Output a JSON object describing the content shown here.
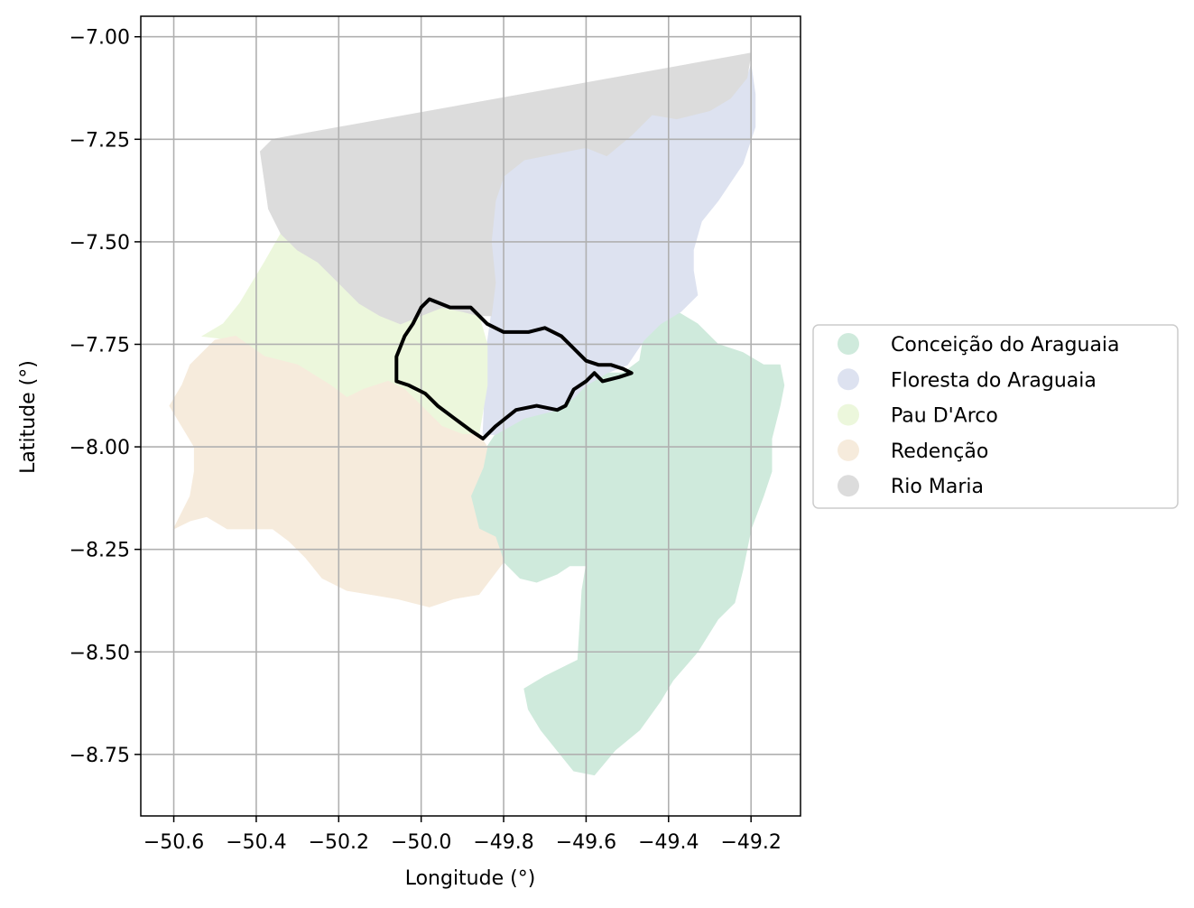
{
  "chart_data": {
    "type": "map",
    "title": "",
    "xlabel": "Longitude (°)",
    "ylabel": "Latitude (°)",
    "xlim": [
      -50.68,
      -49.08
    ],
    "ylim": [
      -8.9,
      -6.95
    ],
    "xticks": [
      -50.6,
      -50.4,
      -50.2,
      -50.0,
      -49.8,
      -49.6,
      -49.4,
      -49.2
    ],
    "xtick_labels": [
      "−50.6",
      "−50.4",
      "−50.2",
      "−50.0",
      "−49.8",
      "−49.6",
      "−49.4",
      "−49.2"
    ],
    "yticks": [
      -7.0,
      -7.25,
      -7.5,
      -7.75,
      -8.0,
      -8.25,
      -8.5,
      -8.75
    ],
    "ytick_labels": [
      "−7.00",
      "−7.25",
      "−7.50",
      "−7.75",
      "−8.00",
      "−8.25",
      "−8.50",
      "−8.75"
    ],
    "grid": true,
    "legend_position": "center-right outside",
    "regions": [
      {
        "name": "Conceição do Araguaia",
        "color": "#cfeadc",
        "coords": [
          [
            -49.6,
            -7.56
          ],
          [
            -49.55,
            -7.62
          ],
          [
            -49.5,
            -7.67
          ],
          [
            -49.44,
            -7.7
          ],
          [
            -49.38,
            -7.67
          ],
          [
            -49.33,
            -7.7
          ],
          [
            -49.28,
            -7.75
          ],
          [
            -49.22,
            -7.77
          ],
          [
            -49.17,
            -7.8
          ],
          [
            -49.13,
            -7.8
          ],
          [
            -49.12,
            -7.85
          ],
          [
            -49.13,
            -7.9
          ],
          [
            -49.15,
            -7.98
          ],
          [
            -49.15,
            -8.06
          ],
          [
            -49.17,
            -8.12
          ],
          [
            -49.2,
            -8.2
          ],
          [
            -49.22,
            -8.3
          ],
          [
            -49.24,
            -8.38
          ],
          [
            -49.28,
            -8.42
          ],
          [
            -49.33,
            -8.5
          ],
          [
            -49.39,
            -8.57
          ],
          [
            -49.42,
            -8.62
          ],
          [
            -49.47,
            -8.69
          ],
          [
            -49.53,
            -8.74
          ],
          [
            -49.58,
            -8.8
          ],
          [
            -49.63,
            -8.79
          ],
          [
            -49.67,
            -8.74
          ],
          [
            -49.71,
            -8.69
          ],
          [
            -49.74,
            -8.64
          ],
          [
            -49.75,
            -8.59
          ],
          [
            -49.7,
            -8.56
          ],
          [
            -49.62,
            -8.52
          ],
          [
            -49.61,
            -8.35
          ],
          [
            -49.6,
            -8.29
          ],
          [
            -49.64,
            -8.29
          ],
          [
            -49.67,
            -8.31
          ],
          [
            -49.72,
            -8.33
          ],
          [
            -49.76,
            -8.32
          ],
          [
            -49.8,
            -8.28
          ],
          [
            -49.83,
            -8.25
          ],
          [
            -49.86,
            -8.2
          ],
          [
            -49.88,
            -8.12
          ],
          [
            -49.86,
            -8.05
          ],
          [
            -49.84,
            -8.0
          ],
          [
            -49.82,
            -7.97
          ],
          [
            -49.75,
            -7.93
          ],
          [
            -49.67,
            -7.91
          ],
          [
            -49.63,
            -7.88
          ],
          [
            -49.6,
            -7.84
          ],
          [
            -49.55,
            -7.82
          ],
          [
            -49.51,
            -7.82
          ],
          [
            -49.47,
            -7.79
          ],
          [
            -49.46,
            -7.73
          ],
          [
            -49.52,
            -7.68
          ],
          [
            -49.56,
            -7.62
          ]
        ]
      },
      {
        "name": "Floresta do Araguaia",
        "color": "#dde2f0",
        "coords": [
          [
            -49.2,
            -7.07
          ],
          [
            -49.19,
            -7.14
          ],
          [
            -49.19,
            -7.22
          ],
          [
            -49.22,
            -7.31
          ],
          [
            -49.28,
            -7.4
          ],
          [
            -49.32,
            -7.45
          ],
          [
            -49.34,
            -7.52
          ],
          [
            -49.34,
            -7.57
          ],
          [
            -49.33,
            -7.63
          ],
          [
            -49.37,
            -7.67
          ],
          [
            -49.42,
            -7.7
          ],
          [
            -49.46,
            -7.74
          ],
          [
            -49.5,
            -7.8
          ],
          [
            -49.55,
            -7.82
          ],
          [
            -49.6,
            -7.85
          ],
          [
            -49.63,
            -7.88
          ],
          [
            -49.67,
            -7.91
          ],
          [
            -49.75,
            -7.93
          ],
          [
            -49.82,
            -7.97
          ],
          [
            -49.85,
            -7.97
          ],
          [
            -49.84,
            -7.75
          ],
          [
            -49.83,
            -7.68
          ],
          [
            -49.82,
            -7.6
          ],
          [
            -49.83,
            -7.5
          ],
          [
            -49.82,
            -7.4
          ],
          [
            -49.8,
            -7.34
          ],
          [
            -49.75,
            -7.3
          ],
          [
            -49.7,
            -7.29
          ],
          [
            -49.65,
            -7.28
          ],
          [
            -49.6,
            -7.27
          ],
          [
            -49.55,
            -7.29
          ],
          [
            -49.49,
            -7.24
          ],
          [
            -49.44,
            -7.19
          ],
          [
            -49.38,
            -7.2
          ],
          [
            -49.3,
            -7.18
          ],
          [
            -49.25,
            -7.15
          ],
          [
            -49.21,
            -7.1
          ]
        ]
      },
      {
        "name": "Pau D'Arco",
        "color": "#ecf7dc",
        "coords": [
          [
            -50.34,
            -7.48
          ],
          [
            -50.38,
            -7.55
          ],
          [
            -50.41,
            -7.6
          ],
          [
            -50.44,
            -7.65
          ],
          [
            -50.48,
            -7.7
          ],
          [
            -50.53,
            -7.73
          ],
          [
            -50.45,
            -7.74
          ],
          [
            -50.38,
            -7.78
          ],
          [
            -50.3,
            -7.8
          ],
          [
            -50.22,
            -7.85
          ],
          [
            -50.18,
            -7.88
          ],
          [
            -50.14,
            -7.86
          ],
          [
            -50.08,
            -7.84
          ],
          [
            -50.04,
            -7.86
          ],
          [
            -50.0,
            -7.9
          ],
          [
            -49.95,
            -7.95
          ],
          [
            -49.9,
            -7.97
          ],
          [
            -49.86,
            -7.97
          ],
          [
            -49.84,
            -7.85
          ],
          [
            -49.84,
            -7.75
          ],
          [
            -49.86,
            -7.68
          ],
          [
            -49.9,
            -7.67
          ],
          [
            -49.95,
            -7.66
          ],
          [
            -50.0,
            -7.68
          ],
          [
            -50.05,
            -7.7
          ],
          [
            -50.1,
            -7.68
          ],
          [
            -50.15,
            -7.65
          ],
          [
            -50.2,
            -7.6
          ],
          [
            -50.25,
            -7.55
          ],
          [
            -50.3,
            -7.52
          ]
        ]
      },
      {
        "name": "Redenção",
        "color": "#f6ebdc",
        "coords": [
          [
            -50.45,
            -7.73
          ],
          [
            -50.5,
            -7.74
          ],
          [
            -50.56,
            -7.8
          ],
          [
            -50.58,
            -7.85
          ],
          [
            -50.61,
            -7.9
          ],
          [
            -50.58,
            -7.95
          ],
          [
            -50.55,
            -8.0
          ],
          [
            -50.55,
            -8.06
          ],
          [
            -50.56,
            -8.12
          ],
          [
            -50.6,
            -8.2
          ],
          [
            -50.56,
            -8.18
          ],
          [
            -50.52,
            -8.17
          ],
          [
            -50.47,
            -8.2
          ],
          [
            -50.42,
            -8.2
          ],
          [
            -50.36,
            -8.2
          ],
          [
            -50.32,
            -8.23
          ],
          [
            -50.28,
            -8.27
          ],
          [
            -50.24,
            -8.32
          ],
          [
            -50.18,
            -8.35
          ],
          [
            -50.12,
            -8.36
          ],
          [
            -50.06,
            -8.37
          ],
          [
            -49.98,
            -8.39
          ],
          [
            -49.92,
            -8.37
          ],
          [
            -49.86,
            -8.36
          ],
          [
            -49.83,
            -8.32
          ],
          [
            -49.8,
            -8.28
          ],
          [
            -49.82,
            -8.22
          ],
          [
            -49.86,
            -8.2
          ],
          [
            -49.88,
            -8.12
          ],
          [
            -49.85,
            -8.05
          ],
          [
            -49.84,
            -8.0
          ],
          [
            -49.86,
            -7.97
          ],
          [
            -49.9,
            -7.97
          ],
          [
            -49.95,
            -7.95
          ],
          [
            -50.0,
            -7.9
          ],
          [
            -50.04,
            -7.86
          ],
          [
            -50.08,
            -7.84
          ],
          [
            -50.14,
            -7.86
          ],
          [
            -50.18,
            -7.88
          ],
          [
            -50.22,
            -7.85
          ],
          [
            -50.3,
            -7.8
          ],
          [
            -50.38,
            -7.78
          ]
        ]
      },
      {
        "name": "Rio Maria",
        "color": "#dcdcdc",
        "coords": [
          [
            -49.2,
            -7.04
          ],
          [
            -50.36,
            -7.25
          ],
          [
            -50.39,
            -7.28
          ],
          [
            -50.38,
            -7.35
          ],
          [
            -50.37,
            -7.42
          ],
          [
            -50.34,
            -7.48
          ],
          [
            -50.3,
            -7.52
          ],
          [
            -50.25,
            -7.55
          ],
          [
            -50.2,
            -7.6
          ],
          [
            -50.15,
            -7.65
          ],
          [
            -50.1,
            -7.68
          ],
          [
            -50.05,
            -7.7
          ],
          [
            -50.0,
            -7.68
          ],
          [
            -49.95,
            -7.66
          ],
          [
            -49.9,
            -7.67
          ],
          [
            -49.86,
            -7.68
          ],
          [
            -49.83,
            -7.68
          ],
          [
            -49.82,
            -7.6
          ],
          [
            -49.83,
            -7.5
          ],
          [
            -49.82,
            -7.4
          ],
          [
            -49.8,
            -7.34
          ],
          [
            -49.75,
            -7.3
          ],
          [
            -49.7,
            -7.29
          ],
          [
            -49.65,
            -7.28
          ],
          [
            -49.6,
            -7.27
          ],
          [
            -49.55,
            -7.29
          ],
          [
            -49.49,
            -7.24
          ],
          [
            -49.44,
            -7.19
          ],
          [
            -49.38,
            -7.2
          ],
          [
            -49.3,
            -7.18
          ],
          [
            -49.25,
            -7.15
          ],
          [
            -49.21,
            -7.1
          ]
        ]
      }
    ],
    "boundary": {
      "color": "#000000",
      "coords": [
        [
          -50.0,
          -7.66
        ],
        [
          -49.98,
          -7.64
        ],
        [
          -49.93,
          -7.66
        ],
        [
          -49.88,
          -7.66
        ],
        [
          -49.84,
          -7.7
        ],
        [
          -49.8,
          -7.72
        ],
        [
          -49.74,
          -7.72
        ],
        [
          -49.7,
          -7.71
        ],
        [
          -49.66,
          -7.73
        ],
        [
          -49.63,
          -7.76
        ],
        [
          -49.6,
          -7.79
        ],
        [
          -49.57,
          -7.8
        ],
        [
          -49.54,
          -7.8
        ],
        [
          -49.51,
          -7.81
        ],
        [
          -49.49,
          -7.82
        ],
        [
          -49.52,
          -7.83
        ],
        [
          -49.56,
          -7.84
        ],
        [
          -49.58,
          -7.82
        ],
        [
          -49.6,
          -7.84
        ],
        [
          -49.63,
          -7.86
        ],
        [
          -49.65,
          -7.9
        ],
        [
          -49.67,
          -7.91
        ],
        [
          -49.72,
          -7.9
        ],
        [
          -49.77,
          -7.91
        ],
        [
          -49.82,
          -7.95
        ],
        [
          -49.85,
          -7.98
        ],
        [
          -49.88,
          -7.96
        ],
        [
          -49.92,
          -7.93
        ],
        [
          -49.96,
          -7.9
        ],
        [
          -49.99,
          -7.87
        ],
        [
          -50.03,
          -7.85
        ],
        [
          -50.06,
          -7.84
        ],
        [
          -50.06,
          -7.78
        ],
        [
          -50.04,
          -7.73
        ],
        [
          -50.02,
          -7.7
        ]
      ]
    }
  }
}
